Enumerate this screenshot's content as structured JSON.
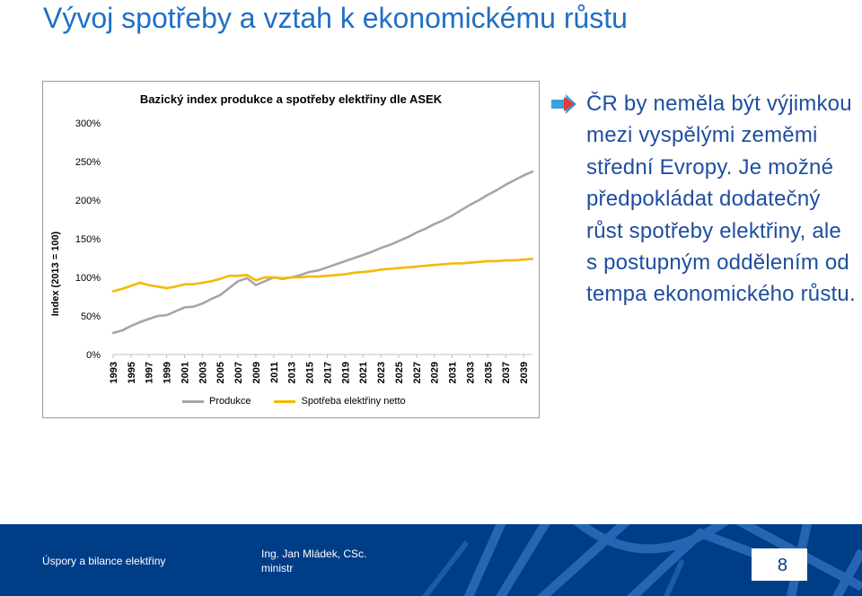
{
  "slide": {
    "title": "Vývoj spotřeby a vztah k ekonomickému růstu",
    "side_text": "ČR by neměla být výjimkou mezi vyspělými zeměmi střední Evropy. Je možné předpokládat dodatečný růst spotřeby elektřiny, ale s postupným oddělením od tempa ekonomického růstu.",
    "bullet_icon": "arrow-right-icon"
  },
  "footer": {
    "left_text": "Úspory a bilance elektřiny",
    "author_name": "Ing. Jan Mládek, CSc.",
    "author_role": "ministr",
    "page_number": "8"
  },
  "colors": {
    "title": "#1f6fc5",
    "side_text": "#1f4e9e",
    "footer_bg": "#003d87",
    "series_produkce": "#a6a6a6",
    "series_spotreba": "#f5b800",
    "arrow_red": "#e23b3b",
    "arrow_blue": "#3aa0e0"
  },
  "chart_data": {
    "type": "line",
    "title": "Bazický index produkce a spotřeby elektřiny dle ASEK",
    "ylabel": "Index (2013 = 100)",
    "xlabel": "",
    "ylim": [
      0,
      300
    ],
    "yticks": [
      "0%",
      "50%",
      "100%",
      "150%",
      "200%",
      "250%",
      "300%"
    ],
    "xticks": [
      "1993",
      "1995",
      "1997",
      "1999",
      "2001",
      "2003",
      "2005",
      "2007",
      "2009",
      "2011",
      "2013",
      "2015",
      "2017",
      "2019",
      "2021",
      "2023",
      "2025",
      "2027",
      "2029",
      "2031",
      "2033",
      "2035",
      "2037",
      "2039"
    ],
    "x": [
      1993,
      1994,
      1995,
      1996,
      1997,
      1998,
      1999,
      2000,
      2001,
      2002,
      2003,
      2004,
      2005,
      2006,
      2007,
      2008,
      2009,
      2010,
      2011,
      2012,
      2013,
      2014,
      2015,
      2016,
      2017,
      2018,
      2019,
      2020,
      2021,
      2022,
      2023,
      2024,
      2025,
      2026,
      2027,
      2028,
      2029,
      2030,
      2031,
      2032,
      2033,
      2034,
      2035,
      2036,
      2037,
      2038,
      2039,
      2040
    ],
    "grid": false,
    "legend_position": "bottom",
    "series": [
      {
        "name": "Produkce",
        "values": [
          28,
          31,
          37,
          42,
          46,
          50,
          51,
          56,
          61,
          62,
          66,
          72,
          77,
          86,
          95,
          99,
          90,
          95,
          100,
          98,
          100,
          103,
          107,
          109,
          113,
          117,
          121,
          125,
          129,
          133,
          138,
          142,
          147,
          152,
          158,
          163,
          169,
          174,
          180,
          187,
          194,
          200,
          207,
          213,
          220,
          226,
          232,
          237
        ]
      },
      {
        "name": "Spotřeba elektřiny netto",
        "values": [
          82,
          85,
          89,
          93,
          90,
          88,
          86,
          88,
          91,
          91,
          93,
          95,
          98,
          102,
          102,
          103,
          96,
          100,
          100,
          99,
          100,
          100,
          101,
          101,
          102,
          103,
          104,
          106,
          107,
          108,
          110,
          111,
          112,
          113,
          114,
          115,
          116,
          117,
          118,
          118,
          119,
          120,
          121,
          121,
          122,
          122,
          123,
          124
        ]
      }
    ]
  }
}
